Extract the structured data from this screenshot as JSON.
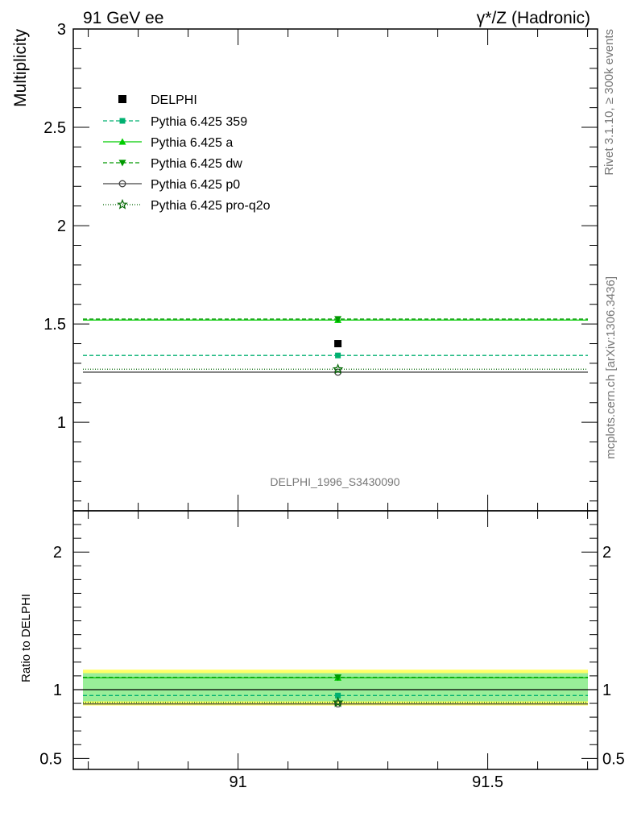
{
  "header": {
    "left": "91 GeV ee",
    "right": "γ*/Z (Hadronic)"
  },
  "side_labels": {
    "rivet": "Rivet 3.1.10, ≥ 300k events",
    "mcplots": "mcplots.cern.ch [arXiv:1306.3436]"
  },
  "analysis_id": "DELPHI_1996_S3430090",
  "chart_data": [
    {
      "type": "line",
      "panel": "main",
      "ylabel": "Multiplicity",
      "xlim": [
        90.67,
        91.72
      ],
      "ylim": [
        0.55,
        3.0
      ],
      "yticks_major": [
        1,
        1.5,
        2,
        2.5,
        3
      ],
      "yticks_minor_step": 0.1,
      "ytick_labels": [
        "1",
        "1.5",
        "2",
        "2.5",
        "3"
      ],
      "xticks_major": [
        91,
        91.5
      ],
      "xticks_minor_step": 0.1,
      "data": {
        "name": "DELPHI",
        "x": [
          91.2
        ],
        "y": [
          1.4
        ]
      },
      "series": [
        {
          "name": "Pythia 6.425 359",
          "color": "#00b070",
          "dash": "5,3",
          "marker": "square",
          "x": [
            91.2
          ],
          "y": [
            1.34
          ]
        },
        {
          "name": "Pythia 6.425 a",
          "color": "#00cc00",
          "dash": "",
          "marker": "triangle-up",
          "x": [
            91.2
          ],
          "y": [
            1.52
          ]
        },
        {
          "name": "Pythia 6.425 dw",
          "color": "#009900",
          "dash": "5,3",
          "marker": "triangle-down",
          "x": [
            91.2
          ],
          "y": [
            1.525
          ]
        },
        {
          "name": "Pythia 6.425 p0",
          "color": "#444444",
          "dash": "",
          "marker": "circle-open",
          "x": [
            91.2
          ],
          "y": [
            1.255
          ]
        },
        {
          "name": "Pythia 6.425 pro-q2o",
          "color": "#006600",
          "dash": "1,2",
          "marker": "star-open",
          "x": [
            91.2
          ],
          "y": [
            1.27
          ]
        }
      ],
      "legend_position": "top-left"
    },
    {
      "type": "line",
      "panel": "ratio",
      "ylabel": "Ratio to DELPHI",
      "xlim": [
        90.67,
        91.72
      ],
      "ylim": [
        0.42,
        2.3
      ],
      "yticks_major": [
        0.5,
        1,
        2
      ],
      "ytick_labels": [
        "0.5",
        "1",
        "2"
      ],
      "xtick_labels": [
        "91",
        "91.5"
      ],
      "xticks_major": [
        91,
        91.5
      ],
      "bands": [
        {
          "name": "total uncertainty",
          "color": "#ffff66",
          "low": 0.885,
          "high": 1.145
        },
        {
          "name": "stat uncertainty",
          "color": "#99ee99",
          "low": 0.915,
          "high": 1.12
        }
      ],
      "reference": 1.0,
      "series": [
        {
          "name": "Pythia 6.425 359",
          "values": [
            0.957
          ]
        },
        {
          "name": "Pythia 6.425 a",
          "values": [
            1.086
          ]
        },
        {
          "name": "Pythia 6.425 dw",
          "values": [
            1.089
          ]
        },
        {
          "name": "Pythia 6.425 p0",
          "values": [
            0.896
          ]
        },
        {
          "name": "Pythia 6.425 pro-q2o",
          "values": [
            0.907
          ]
        }
      ]
    }
  ]
}
